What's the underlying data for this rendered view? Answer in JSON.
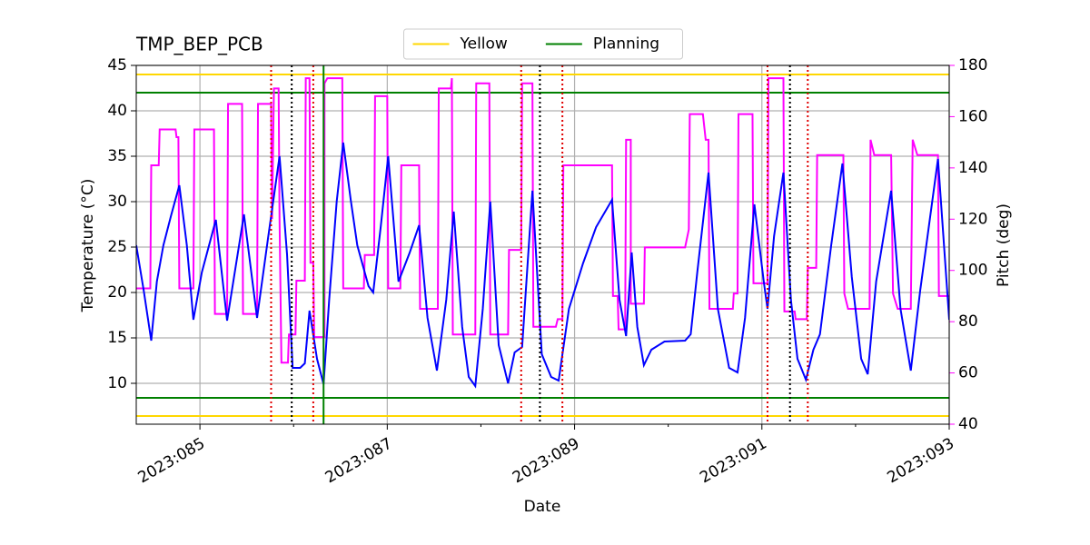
{
  "chart_data": {
    "type": "line",
    "title": "TMP_BEP_PCB",
    "xlabel": "Date",
    "ylabel": "Temperature (°C)",
    "y2label": "Pitch (deg)",
    "y2color": "#ff00ff",
    "xlim": [
      84.32,
      93.0
    ],
    "xticks": [
      {
        "value": 85,
        "label": "2023:085"
      },
      {
        "value": 87,
        "label": "2023:087"
      },
      {
        "value": 89,
        "label": "2023:089"
      },
      {
        "value": 91,
        "label": "2023:091"
      },
      {
        "value": 93,
        "label": "2023:093"
      }
    ],
    "xminorticks": [
      86,
      88,
      90,
      92
    ],
    "ylim": [
      5.5,
      45
    ],
    "yticks": [
      10,
      15,
      20,
      25,
      30,
      35,
      40,
      45
    ],
    "y2lim": [
      40,
      180
    ],
    "y2ticks": [
      40,
      60,
      80,
      100,
      120,
      140,
      160,
      180
    ],
    "grid": true,
    "legend": "upper center",
    "series": [
      {
        "color": "#0000ff",
        "x": [
          84.32,
          84.4,
          84.48,
          84.54,
          84.61,
          84.69,
          84.78,
          84.86,
          84.93,
          85.02,
          85.17,
          85.29,
          85.47,
          85.61,
          85.73,
          85.85,
          85.93,
          85.99,
          86.07,
          86.12,
          86.17,
          86.25,
          86.32,
          86.38,
          86.46,
          86.53,
          86.61,
          86.68,
          86.8,
          86.85,
          86.93,
          87.01,
          87.12,
          87.24,
          87.34,
          87.43,
          87.53,
          87.63,
          87.71,
          87.8,
          87.87,
          87.94,
          88.02,
          88.1,
          88.19,
          88.29,
          88.36,
          88.44,
          88.55,
          88.65,
          88.75,
          88.83,
          88.94,
          89.09,
          89.23,
          89.4,
          89.48,
          89.55,
          89.61,
          89.67,
          89.74,
          89.82,
          89.96,
          90.18,
          90.24,
          90.31,
          90.43,
          90.53,
          90.65,
          90.74,
          90.82,
          90.92,
          91.02,
          91.06,
          91.13,
          91.23,
          91.31,
          91.38,
          91.47,
          91.55,
          91.62,
          91.74,
          91.86,
          91.96,
          92.06,
          92.13,
          92.22,
          92.38,
          92.48,
          92.59,
          92.69,
          92.88,
          93.0
        ],
        "values": [
          25.2,
          20.2,
          14.7,
          21.2,
          25.2,
          28.4,
          31.8,
          25.2,
          17.0,
          22.2,
          28.0,
          16.9,
          28.6,
          17.2,
          26.2,
          35.0,
          24.2,
          11.7,
          11.7,
          12.2,
          18.0,
          12.7,
          9.9,
          19.2,
          30.0,
          36.5,
          30.2,
          25.2,
          20.7,
          20.0,
          27.2,
          35.0,
          21.2,
          24.4,
          27.4,
          17.2,
          11.4,
          19.2,
          28.9,
          16.2,
          10.7,
          9.7,
          18.2,
          30.0,
          14.2,
          10.0,
          13.4,
          14.0,
          31.2,
          13.2,
          10.7,
          10.3,
          18.2,
          23.2,
          27.2,
          30.2,
          19.2,
          15.2,
          24.4,
          16.2,
          12.0,
          13.7,
          14.6,
          14.7,
          15.4,
          22.2,
          33.2,
          18.2,
          11.7,
          11.2,
          17.2,
          29.7,
          21.2,
          18.2,
          26.2,
          33.2,
          19.2,
          12.7,
          10.4,
          13.7,
          15.4,
          25.2,
          34.2,
          21.7,
          12.7,
          11.0,
          21.2,
          31.2,
          18.2,
          11.4,
          20.2,
          34.7,
          17.0
        ]
      },
      {
        "color": "#ff00ff",
        "axis": "y2",
        "x": [
          84.32,
          84.47,
          84.48,
          84.56,
          84.57,
          84.74,
          84.75,
          84.77,
          84.78,
          84.93,
          84.94,
          85.15,
          85.16,
          85.29,
          85.3,
          85.45,
          85.46,
          85.61,
          85.62,
          85.76,
          85.77,
          85.79,
          85.84,
          85.85,
          85.87,
          85.94,
          85.95,
          86.02,
          86.03,
          86.12,
          86.13,
          86.17,
          86.18,
          86.21,
          86.22,
          86.33,
          86.33,
          86.36,
          86.52,
          86.53,
          86.75,
          86.76,
          86.86,
          86.87,
          87.0,
          87.01,
          87.14,
          87.15,
          87.34,
          87.35,
          87.54,
          87.55,
          87.68,
          87.69,
          87.7,
          87.94,
          87.95,
          88.09,
          88.1,
          88.29,
          88.3,
          88.43,
          88.44,
          88.55,
          88.56,
          88.8,
          88.82,
          88.87,
          88.88,
          89.4,
          89.41,
          89.46,
          89.47,
          89.54,
          89.55,
          89.6,
          89.6,
          89.74,
          89.75,
          90.18,
          90.22,
          90.23,
          90.37,
          90.4,
          90.43,
          90.44,
          90.69,
          90.7,
          90.74,
          90.75,
          90.9,
          90.91,
          91.06,
          91.07,
          91.23,
          91.24,
          91.35,
          91.36,
          91.48,
          91.49,
          91.58,
          91.59,
          91.87,
          91.88,
          91.92,
          92.15,
          92.16,
          92.2,
          92.38,
          92.4,
          92.45,
          92.59,
          92.61,
          92.66,
          92.88,
          92.89,
          93.0
        ],
        "values": [
          93,
          93,
          141,
          141,
          155,
          155,
          152,
          152,
          93,
          93,
          155,
          155,
          83,
          83,
          165,
          165,
          83,
          83,
          165,
          165,
          120,
          171,
          171,
          120,
          64,
          64,
          75,
          75,
          96,
          96,
          175,
          175,
          103,
          103,
          74,
          74,
          173,
          175,
          175,
          93,
          93,
          106,
          106,
          168,
          168,
          93,
          93,
          141,
          141,
          85,
          85,
          171,
          171,
          175,
          75,
          75,
          173,
          173,
          75,
          75,
          108,
          108,
          173,
          173,
          78,
          78,
          81,
          81,
          141,
          141,
          90,
          90,
          77,
          77,
          151,
          151,
          87,
          87,
          109,
          109,
          116,
          161,
          161,
          151,
          151,
          85,
          85,
          91,
          91,
          161,
          161,
          95,
          95,
          175,
          175,
          84,
          84,
          81,
          81,
          101,
          101,
          145,
          145,
          91,
          85,
          85,
          151,
          145,
          145,
          91,
          85,
          85,
          151,
          145,
          145,
          90,
          90
        ]
      }
    ],
    "limits": [
      {
        "name": "Yellow",
        "color": "#ffd700",
        "values": [
          6.4,
          44
        ]
      },
      {
        "name": "Planning",
        "color": "#008000",
        "values": [
          8.4,
          42
        ]
      }
    ],
    "events": [
      {
        "color": "#e00000",
        "style": "dotted",
        "x": [
          85.76,
          86.21,
          88.43,
          88.87,
          91.06,
          91.49
        ]
      },
      {
        "color": "#000000",
        "style": "dotted",
        "x": [
          85.98,
          88.63,
          91.3
        ]
      },
      {
        "color": "#008000",
        "style": "solid",
        "x": [
          86.32
        ]
      }
    ]
  }
}
